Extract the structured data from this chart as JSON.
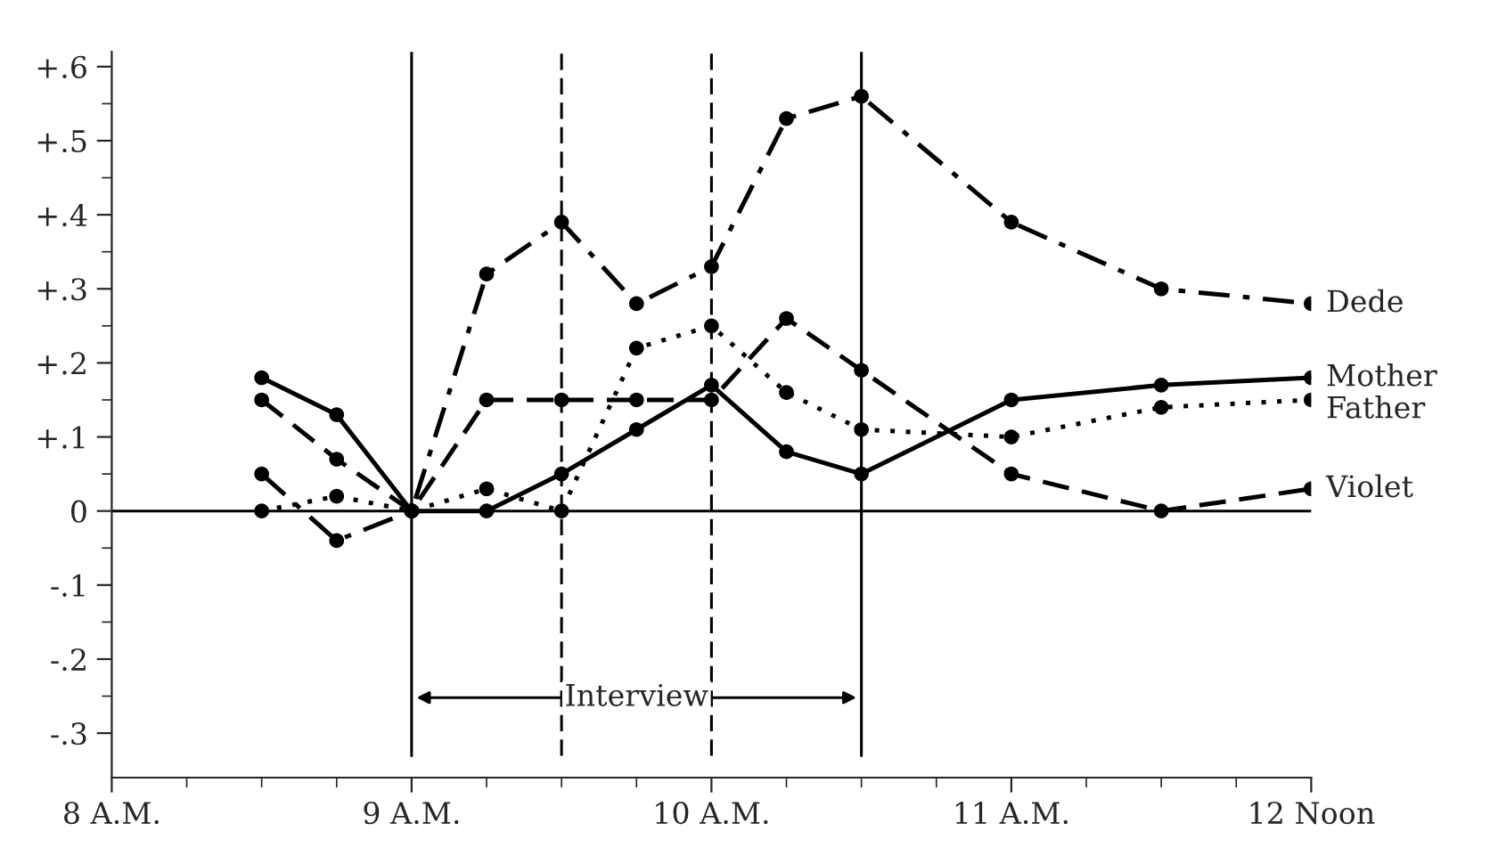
{
  "chart_data": {
    "type": "line",
    "x": [
      8.5,
      8.75,
      9,
      9.25,
      9.5,
      9.75,
      10,
      10.25,
      10.5,
      11,
      11.5,
      12
    ],
    "series": [
      {
        "name": "Dede",
        "color": "#000000",
        "line_style": "dashdot",
        "values": [
          0.05,
          -0.04,
          0,
          0.32,
          0.39,
          0.28,
          0.33,
          0.53,
          0.56,
          0.39,
          0.3,
          0.28
        ]
      },
      {
        "name": "Mother",
        "color": "#000000",
        "line_style": "solid",
        "values": [
          0.18,
          0.13,
          0,
          0,
          0.05,
          0.11,
          0.17,
          0.08,
          0.05,
          0.15,
          0.17,
          0.18
        ]
      },
      {
        "name": "Father",
        "color": "#000000",
        "line_style": "dotted",
        "values": [
          0,
          0.02,
          0,
          0.03,
          0,
          0.22,
          0.25,
          0.16,
          0.11,
          0.1,
          0.14,
          0.15
        ]
      },
      {
        "name": "Violet",
        "color": "#000000",
        "line_style": "dashed",
        "values": [
          0.15,
          0.07,
          0,
          0.15,
          0.15,
          0.15,
          0.15,
          0.26,
          0.19,
          0.05,
          0,
          0.03
        ]
      }
    ],
    "marker": "circle",
    "xlim": [
      8,
      12
    ],
    "xticks": [
      {
        "value": 8,
        "label": "8 A.M."
      },
      {
        "value": 8.25,
        "label": null
      },
      {
        "value": 8.5,
        "label": null
      },
      {
        "value": 8.75,
        "label": null
      },
      {
        "value": 9,
        "label": "9 A.M."
      },
      {
        "value": 9.25,
        "label": null
      },
      {
        "value": 9.5,
        "label": null
      },
      {
        "value": 9.75,
        "label": null
      },
      {
        "value": 10,
        "label": "10 A.M."
      },
      {
        "value": 10.25,
        "label": null
      },
      {
        "value": 10.5,
        "label": null
      },
      {
        "value": 10.75,
        "label": null
      },
      {
        "value": 11,
        "label": "11 A.M."
      },
      {
        "value": 11.25,
        "label": null
      },
      {
        "value": 11.5,
        "label": null
      },
      {
        "value": 11.75,
        "label": null
      },
      {
        "value": 12,
        "label": "12 Noon"
      }
    ],
    "ylim": [
      -0.36,
      0.62
    ],
    "yticks": [
      {
        "value": -0.3,
        "label": "-.3"
      },
      {
        "value": -0.25,
        "label": null
      },
      {
        "value": -0.2,
        "label": "-.2"
      },
      {
        "value": -0.15,
        "label": null
      },
      {
        "value": -0.1,
        "label": "-.1"
      },
      {
        "value": -0.05,
        "label": null
      },
      {
        "value": 0,
        "label": "0"
      },
      {
        "value": 0.05,
        "label": null
      },
      {
        "value": 0.1,
        "label": "+.1"
      },
      {
        "value": 0.15,
        "label": null
      },
      {
        "value": 0.2,
        "label": "+.2"
      },
      {
        "value": 0.25,
        "label": null
      },
      {
        "value": 0.3,
        "label": "+.3"
      },
      {
        "value": 0.35,
        "label": null
      },
      {
        "value": 0.4,
        "label": "+.4"
      },
      {
        "value": 0.45,
        "label": null
      },
      {
        "value": 0.5,
        "label": "+.5"
      },
      {
        "value": 0.55,
        "label": null
      },
      {
        "value": 0.6,
        "label": "+.6"
      }
    ],
    "ref_lines": [
      {
        "axis": "x",
        "value": 9,
        "line_style": "solid"
      },
      {
        "axis": "x",
        "value": 9.5,
        "line_style": "dashed"
      },
      {
        "axis": "x",
        "value": 10,
        "line_style": "dashed"
      },
      {
        "axis": "x",
        "value": 10.5,
        "line_style": "solid"
      },
      {
        "axis": "y",
        "value": 0,
        "line_style": "solid"
      }
    ],
    "annotations": [
      "Interview"
    ],
    "grid": false,
    "legend": false
  }
}
